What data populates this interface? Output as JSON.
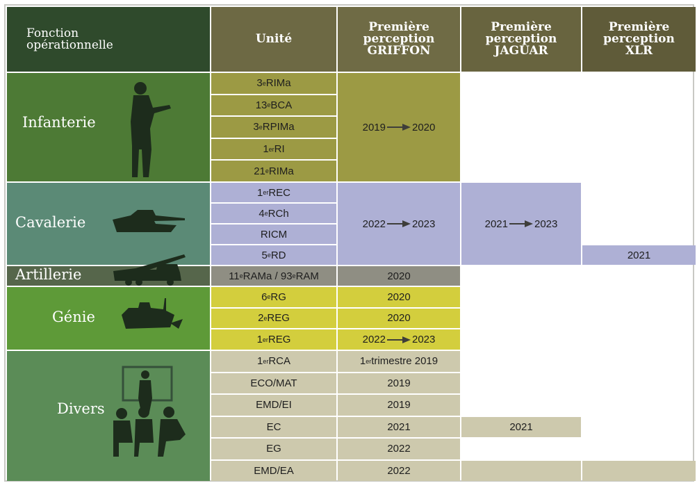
{
  "header": {
    "columns": [
      [
        "Fonction",
        "opérationnelle"
      ],
      [
        "Unité"
      ],
      [
        "Première",
        "perception",
        "GRIFFON"
      ],
      [
        "Première",
        "perception",
        "JAGUAR"
      ],
      [
        "Première",
        "perception",
        "XLR"
      ]
    ]
  },
  "groups": [
    {
      "name": "Infanterie",
      "left_color": "#4d7a35",
      "cell_color": "#9c9a44",
      "units": [
        [
          {
            "t": "3"
          },
          {
            "s": "e"
          },
          {
            "t": " RIMa"
          }
        ],
        [
          {
            "t": "13"
          },
          {
            "s": "e"
          },
          {
            "t": " BCA"
          }
        ],
        [
          {
            "t": "3"
          },
          {
            "s": "e"
          },
          {
            "t": " RPIMa"
          }
        ],
        [
          {
            "t": "1"
          },
          {
            "s": "er"
          },
          {
            "t": " RI"
          }
        ],
        [
          {
            "t": "21"
          },
          {
            "s": "e"
          },
          {
            "t": " RIMa"
          }
        ]
      ],
      "griffon": {
        "from": "2019",
        "to": "2020"
      }
    },
    {
      "name": "Cavalerie",
      "left_color": "#5b8a76",
      "cell_color": "#aeb0d5",
      "units": [
        [
          {
            "t": "1"
          },
          {
            "s": "er"
          },
          {
            "t": " REC"
          }
        ],
        [
          {
            "t": "4"
          },
          {
            "s": "e"
          },
          {
            "t": " RCh"
          }
        ],
        [
          {
            "t": "RICM"
          }
        ],
        [
          {
            "t": "5"
          },
          {
            "s": "e"
          },
          {
            "t": " RD"
          }
        ]
      ],
      "griffon": {
        "from": "2022",
        "to": "2023"
      },
      "jaguar": {
        "from": "2021",
        "to": "2023"
      },
      "xlr": [
        null,
        null,
        null,
        [
          {
            "t": "2021"
          }
        ]
      ]
    },
    {
      "name": "Artillerie",
      "left_color": "#56664b",
      "cell_color": "#8f8e83",
      "units": [
        [
          {
            "t": "11"
          },
          {
            "s": "e"
          },
          {
            "t": " RAMa / 93"
          },
          {
            "s": "e"
          },
          {
            "t": " RAM"
          }
        ]
      ],
      "griffon": [
        [
          {
            "t": "2020"
          }
        ]
      ]
    },
    {
      "name": "Génie",
      "left_color": "#5e9a38",
      "cell_color": "#d3ce3d",
      "units": [
        [
          {
            "t": "6"
          },
          {
            "s": "e"
          },
          {
            "t": " RG"
          }
        ],
        [
          {
            "t": "2"
          },
          {
            "s": "e"
          },
          {
            "t": " REG"
          }
        ],
        [
          {
            "t": "1"
          },
          {
            "s": "er"
          },
          {
            "t": " REG"
          }
        ]
      ],
      "griffon": [
        [
          {
            "t": "2020"
          }
        ],
        [
          {
            "t": "2020"
          }
        ],
        {
          "from": "2022",
          "to": "2023"
        }
      ]
    },
    {
      "name": "Divers",
      "left_color": "#5b8c57",
      "cell_color": "#cdc9ad",
      "units": [
        [
          {
            "t": "1"
          },
          {
            "s": "er"
          },
          {
            "t": " RCA"
          }
        ],
        [
          {
            "t": "ECO/MAT"
          }
        ],
        [
          {
            "t": "EMD/EI"
          }
        ],
        [
          {
            "t": "EC"
          }
        ],
        [
          {
            "t": "EG"
          }
        ],
        [
          {
            "t": "EMD/EA"
          }
        ]
      ],
      "griffon": [
        [
          {
            "t": "1"
          },
          {
            "s": "er"
          },
          {
            "t": " trimestre 2019"
          }
        ],
        [
          {
            "t": "2019"
          }
        ],
        [
          {
            "t": "2019"
          }
        ],
        [
          {
            "t": "2021"
          }
        ],
        [
          {
            "t": "2022"
          }
        ],
        [
          {
            "t": "2022"
          }
        ]
      ],
      "jaguar": [
        null,
        null,
        null,
        [
          {
            "t": "2021"
          }
        ],
        null,
        null
      ]
    }
  ]
}
